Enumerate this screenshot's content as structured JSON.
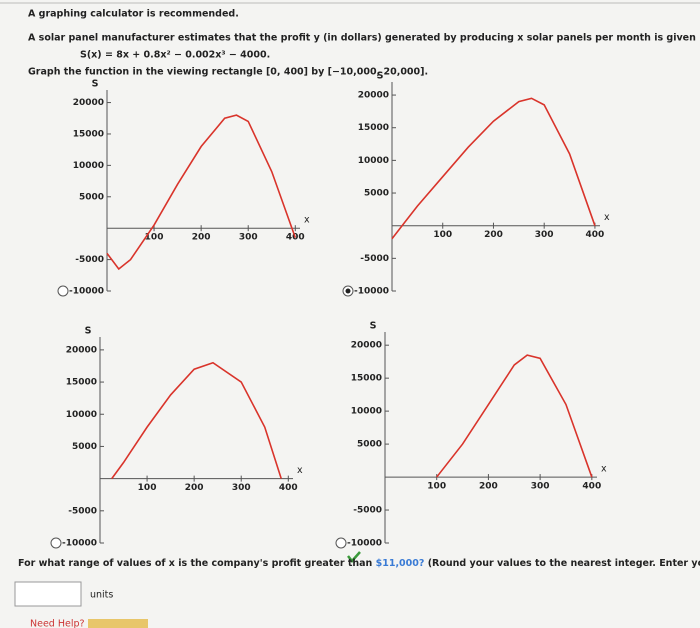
{
  "header": {
    "note": "A graphing calculator is recommended.",
    "problem": "A solar panel manufacturer estimates that the profit y (in dollars) generated by producing x solar panels per month is given by the equation",
    "equation": "S(x) = 8x + 0.8x² − 0.002x³ − 4000.",
    "instruction": "Graph the function in the viewing rectangle [0, 400] by [−10,000, 20,000]."
  },
  "selected_option": 1,
  "chart_data": [
    {
      "type": "line",
      "x_label": "x",
      "y_label": "S",
      "xlim": [
        0,
        410
      ],
      "ylim": [
        -10000,
        22000
      ],
      "xticks": [
        100,
        200,
        300,
        400
      ],
      "yticks": [
        -10000,
        -5000,
        5000,
        10000,
        15000,
        20000
      ],
      "x": [
        0,
        25,
        50,
        100,
        150,
        200,
        250,
        275,
        300,
        350,
        400
      ],
      "series": [
        {
          "color": "#d9342b",
          "values": [
            -4000,
            -6500,
            -5000,
            500,
            7000,
            13000,
            17500,
            18000,
            17000,
            9000,
            -1500
          ]
        }
      ]
    },
    {
      "type": "line",
      "x_label": "x",
      "y_label": "S",
      "xlim": [
        0,
        410
      ],
      "ylim": [
        -10000,
        22000
      ],
      "xticks": [
        100,
        200,
        300,
        400
      ],
      "yticks": [
        -10000,
        -5000,
        5000,
        10000,
        15000,
        20000
      ],
      "x": [
        0,
        25,
        50,
        100,
        150,
        200,
        250,
        275,
        300,
        350,
        400
      ],
      "series": [
        {
          "color": "#d9342b",
          "values": [
            -2000,
            500,
            3000,
            7500,
            12000,
            16000,
            19000,
            19500,
            18500,
            11000,
            0
          ]
        }
      ]
    },
    {
      "type": "line",
      "x_label": "x",
      "y_label": "S",
      "xlim": [
        0,
        410
      ],
      "ylim": [
        -10000,
        22000
      ],
      "xticks": [
        100,
        200,
        300,
        400
      ],
      "yticks": [
        -10000,
        -5000,
        5000,
        10000,
        15000,
        20000
      ],
      "x": [
        25,
        50,
        100,
        150,
        200,
        240,
        300,
        350,
        385
      ],
      "series": [
        {
          "color": "#d9342b",
          "values": [
            0,
            2500,
            8000,
            13000,
            17000,
            18000,
            15000,
            8000,
            0
          ]
        }
      ]
    },
    {
      "type": "line",
      "x_label": "x",
      "y_label": "S",
      "xlim": [
        0,
        410
      ],
      "ylim": [
        -10000,
        22000
      ],
      "xticks": [
        100,
        200,
        300,
        400
      ],
      "yticks": [
        -10000,
        -5000,
        5000,
        10000,
        15000,
        20000
      ],
      "x": [
        100,
        150,
        200,
        250,
        275,
        300,
        350,
        400
      ],
      "series": [
        {
          "color": "#d9342b",
          "values": [
            0,
            5000,
            11000,
            17000,
            18500,
            18000,
            11000,
            0
          ]
        }
      ]
    }
  ],
  "question": {
    "before": "For what range of values of x is the company's profit greater than ",
    "amount": "$11,000?",
    "after": " (Round your values to the nearest integer. Enter your answer using inte",
    "unit": "units",
    "help": "Need Help?"
  }
}
